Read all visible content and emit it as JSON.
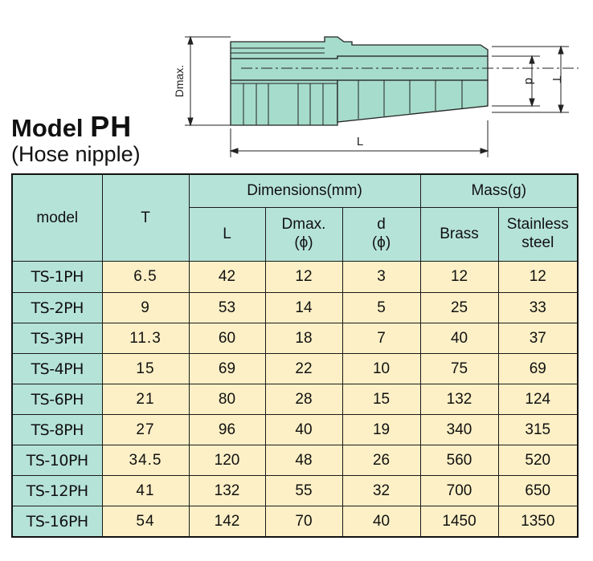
{
  "title": {
    "prefix": "Model",
    "code": "PH",
    "subtitle": "(Hose nipple)"
  },
  "diagram": {
    "labels": {
      "dmax": "Dmax.",
      "d": "d",
      "t": "T",
      "l": "L"
    }
  },
  "colors": {
    "header_bg": "#b6e3d8",
    "cell_bg": "#fdf0c6",
    "part_fill": "#a6dccb"
  },
  "table": {
    "headers": {
      "model": "model",
      "t": "T",
      "dimensions": "Dimensions(mm)",
      "mass": "Mass(g)",
      "l": "L",
      "dmax_line1": "Dmax.",
      "dmax_line2": "(ϕ)",
      "d_line1": "d",
      "d_line2": "(ϕ)",
      "brass": "Brass",
      "stainless_line1": "Stainless",
      "stainless_line2": "steel"
    },
    "rows": [
      {
        "model": "TS-1PH",
        "t": "6.5",
        "l": "42",
        "dmax": "12",
        "d": "3",
        "brass": "12",
        "stainless": "12"
      },
      {
        "model": "TS-2PH",
        "t": "9",
        "l": "53",
        "dmax": "14",
        "d": "5",
        "brass": "25",
        "stainless": "33"
      },
      {
        "model": "TS-3PH",
        "t": "11.3",
        "l": "60",
        "dmax": "18",
        "d": "7",
        "brass": "40",
        "stainless": "37"
      },
      {
        "model": "TS-4PH",
        "t": "15",
        "l": "69",
        "dmax": "22",
        "d": "10",
        "brass": "75",
        "stainless": "69"
      },
      {
        "model": "TS-6PH",
        "t": "21",
        "l": "80",
        "dmax": "28",
        "d": "15",
        "brass": "132",
        "stainless": "124"
      },
      {
        "model": "TS-8PH",
        "t": "27",
        "l": "96",
        "dmax": "40",
        "d": "19",
        "brass": "340",
        "stainless": "315"
      },
      {
        "model": "TS-10PH",
        "t": "34.5",
        "l": "120",
        "dmax": "48",
        "d": "26",
        "brass": "560",
        "stainless": "520"
      },
      {
        "model": "TS-12PH",
        "t": "41",
        "l": "132",
        "dmax": "55",
        "d": "32",
        "brass": "700",
        "stainless": "650"
      },
      {
        "model": "TS-16PH",
        "t": "54",
        "l": "142",
        "dmax": "70",
        "d": "40",
        "brass": "1450",
        "stainless": "1350"
      }
    ]
  }
}
